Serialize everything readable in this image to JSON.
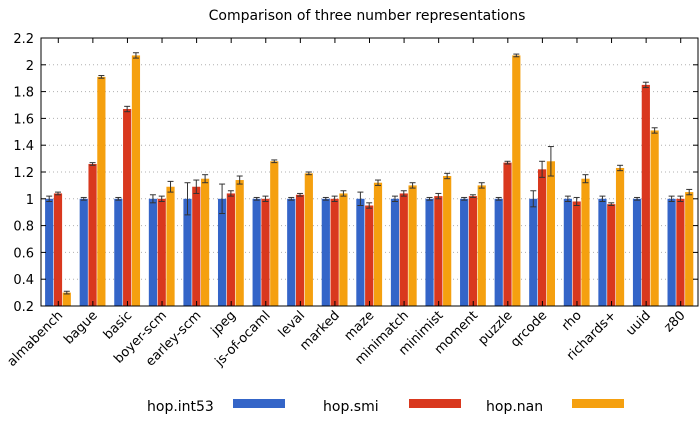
{
  "chart_data": {
    "type": "bar",
    "title": "Comparison of three number representations",
    "xlabel": "",
    "ylabel": "",
    "ylim": [
      0.2,
      2.2
    ],
    "yticks": [
      0.2,
      0.4,
      0.6,
      0.8,
      1,
      1.2,
      1.4,
      1.6,
      1.8,
      2,
      2.2
    ],
    "ytick_labels": [
      "0.2",
      "0.4",
      "0.6",
      "0.8",
      "1",
      "1.2",
      "1.4",
      "1.6",
      "1.8",
      "2",
      "2.2"
    ],
    "grid": true,
    "legend_position": "bottom",
    "categories": [
      "almabench",
      "bague",
      "basic",
      "boyer-scm",
      "earley-scm",
      "jpeg",
      "js-of-ocaml",
      "leval",
      "marked",
      "maze",
      "minimatch",
      "minimist",
      "moment",
      "puzzle",
      "qrcode",
      "rho",
      "richards+",
      "uuid",
      "z80"
    ],
    "series": [
      {
        "name": "hop.int53",
        "color": "#3465c8",
        "values": [
          1.0,
          1.0,
          1.0,
          1.0,
          1.0,
          1.0,
          1.0,
          1.0,
          1.0,
          1.0,
          1.0,
          1.0,
          1.0,
          1.0,
          1.0,
          1.0,
          1.0,
          1.0,
          1.0
        ],
        "errors": [
          0.02,
          0.01,
          0.01,
          0.03,
          0.12,
          0.11,
          0.01,
          0.01,
          0.01,
          0.05,
          0.02,
          0.01,
          0.01,
          0.01,
          0.06,
          0.02,
          0.02,
          0.01,
          0.02
        ]
      },
      {
        "name": "hop.smi",
        "color": "#d9381e",
        "values": [
          1.04,
          1.26,
          1.67,
          1.0,
          1.09,
          1.04,
          1.0,
          1.03,
          1.0,
          0.95,
          1.04,
          1.02,
          1.02,
          1.27,
          1.22,
          0.98,
          0.96,
          1.85,
          1.0
        ],
        "errors": [
          0.01,
          0.01,
          0.02,
          0.02,
          0.05,
          0.02,
          0.02,
          0.01,
          0.02,
          0.02,
          0.02,
          0.02,
          0.01,
          0.01,
          0.06,
          0.03,
          0.01,
          0.02,
          0.02
        ]
      },
      {
        "name": "hop.nan",
        "color": "#f5a00f",
        "values": [
          0.3,
          1.91,
          2.07,
          1.09,
          1.15,
          1.14,
          1.28,
          1.19,
          1.04,
          1.12,
          1.1,
          1.17,
          1.1,
          2.07,
          1.28,
          1.15,
          1.23,
          1.51,
          1.05
        ],
        "errors": [
          0.01,
          0.01,
          0.02,
          0.04,
          0.03,
          0.03,
          0.01,
          0.01,
          0.02,
          0.02,
          0.02,
          0.02,
          0.02,
          0.01,
          0.11,
          0.03,
          0.02,
          0.02,
          0.02
        ]
      }
    ]
  }
}
